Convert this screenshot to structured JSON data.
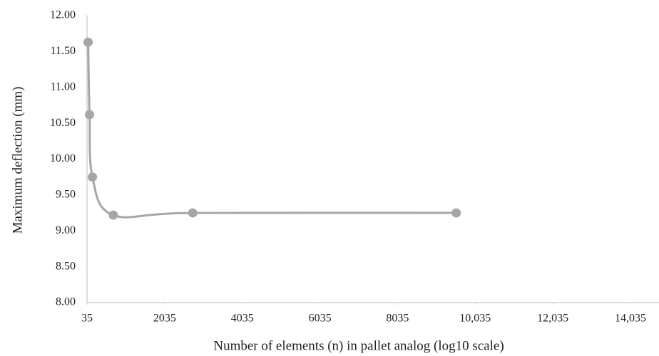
{
  "chart_data": {
    "type": "scatter",
    "x_label": "Number of elements (n) in pallet analog (log10 scale)",
    "y_label": "Maximum deflection (mm)",
    "series": [
      {
        "color": "#a6a6a6",
        "x": [
          64,
          100,
          175,
          712,
          2759,
          9547
        ],
        "values": [
          11.63,
          10.62,
          9.75,
          9.22,
          9.25,
          9.25
        ]
      }
    ],
    "smooth_line": true,
    "xlim": [
      35,
      14035
    ],
    "xticks": [
      35,
      2035,
      4035,
      6035,
      8035,
      {
        "value": 10035,
        "label": "10,035"
      },
      {
        "value": 12035,
        "label": "12,035"
      },
      {
        "value": 14035,
        "label": "14,035"
      }
    ],
    "ylim": [
      8,
      12
    ],
    "yticks": [
      {
        "value": 8,
        "label": "8.00"
      },
      {
        "value": 8.5,
        "label": "8.50"
      },
      {
        "value": 9,
        "label": "9.00"
      },
      {
        "value": 9.5,
        "label": "9.50"
      },
      {
        "value": 10,
        "label": "10.00"
      },
      {
        "value": 10.5,
        "label": "10.50"
      },
      {
        "value": 11,
        "label": "11.00"
      },
      {
        "value": 11.5,
        "label": "11.50"
      },
      {
        "value": 12,
        "label": "12.00"
      }
    ]
  }
}
